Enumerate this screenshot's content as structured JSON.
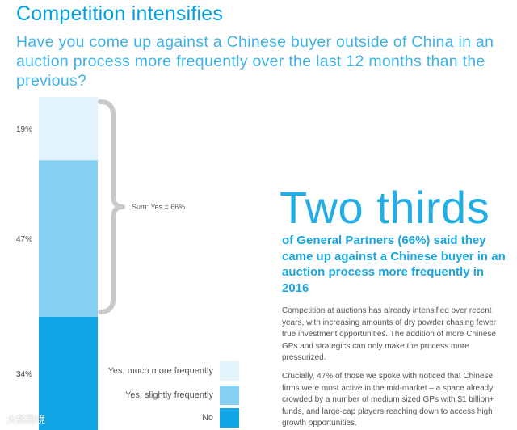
{
  "header": {
    "title": "Competition intensifies",
    "question": "Have you come up against a Chinese buyer outside of China in an auction process more frequently over the last 12 months than the previous?"
  },
  "chart_data": {
    "type": "bar",
    "stacked": true,
    "categories": [
      "Yes, much more frequently",
      "Yes, slightly frequently",
      "No"
    ],
    "values": [
      19,
      47,
      34
    ],
    "value_labels": [
      "19%",
      "47%",
      "34%"
    ],
    "colors": [
      "#e2f3fc",
      "#86d0f2",
      "#10a6e6"
    ],
    "bracket_label": "Sum: Yes = 66%",
    "legend": [
      "Yes, much more frequently",
      "Yes, slightly frequently",
      "No"
    ]
  },
  "callout": {
    "headline": "Two thirds",
    "subhead": "of General Partners (66%) said they came up against a Chinese buyer in an auction process more frequently in 2016",
    "paragraph1": "Competition at auctions has already intensified over recent years, with increasing amounts of dry powder chasing fewer true investment opportunities. The addition of more Chinese GPs and strategics can only make the process more pressurized.",
    "paragraph2": "Crucially, 47% of those we spoke with noticed that Chinese firms were most active in the mid-market – a space already crowded by a number of medium sized GPs with $1 billion+ funds, and large-cap players reaching down to access high growth opportunities."
  },
  "watermark": "大数跨境"
}
